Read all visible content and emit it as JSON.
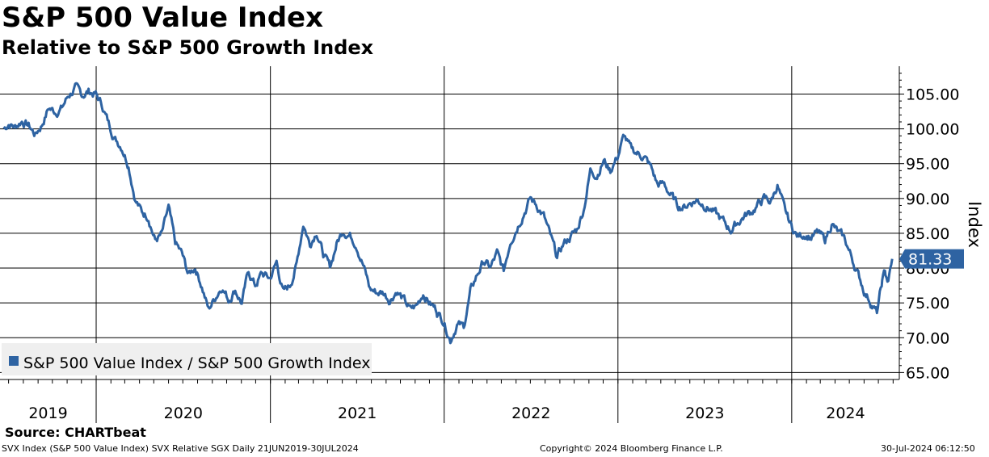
{
  "title": "S&P 500 Value Index",
  "subtitle": "Relative to S&P 500 Growth Index",
  "source": "Source: CHARTbeat",
  "footer": {
    "left": "SVX Index (S&P 500 Value Index) SVX Relative SGX  Daily 21JUN2019-30JUL2024",
    "center": "Copyright© 2024 Bloomberg Finance L.P.",
    "right": "30-Jul-2024 06:12:50"
  },
  "colors": {
    "series": "#2e63a2",
    "grid": "#000000",
    "legend_bg": "#efefef"
  },
  "chart_data": {
    "type": "line",
    "ylabel": "Index",
    "ylim": [
      64,
      109
    ],
    "yticks": [
      "65.00",
      "70.00",
      "75.00",
      "80.00",
      "85.00",
      "90.00",
      "95.00",
      "100.00",
      "105.00"
    ],
    "year_labels": [
      "2019",
      "2020",
      "2021",
      "2022",
      "2023",
      "2024"
    ],
    "last_value": "81.33",
    "legend": "S&P 500 Value Index / S&P 500 Growth Index",
    "series": [
      {
        "name": "S&P 500 Value Index / S&P 500 Growth Index",
        "points": [
          [
            "2019-06-21",
            100.0
          ],
          [
            "2019-07-01",
            100.8
          ],
          [
            "2019-07-15",
            100.3
          ],
          [
            "2019-07-29",
            101.2
          ],
          [
            "2019-08-12",
            100.5
          ],
          [
            "2019-08-26",
            99.2
          ],
          [
            "2019-09-09",
            100.6
          ],
          [
            "2019-09-23",
            103.0
          ],
          [
            "2019-10-07",
            102.5
          ],
          [
            "2019-10-21",
            103.0
          ],
          [
            "2019-11-04",
            104.8
          ],
          [
            "2019-11-18",
            105.8
          ],
          [
            "2019-12-02",
            104.8
          ],
          [
            "2019-12-16",
            105.4
          ],
          [
            "2019-12-31",
            105.0
          ],
          [
            "2020-01-13",
            103.5
          ],
          [
            "2020-01-27",
            100.8
          ],
          [
            "2020-02-10",
            98.6
          ],
          [
            "2020-02-24",
            97.5
          ],
          [
            "2020-03-09",
            95.0
          ],
          [
            "2020-03-23",
            90.0
          ],
          [
            "2020-04-06",
            88.0
          ],
          [
            "2020-04-20",
            87.5
          ],
          [
            "2020-05-04",
            84.0
          ],
          [
            "2020-05-18",
            84.8
          ],
          [
            "2020-06-01",
            88.5
          ],
          [
            "2020-06-15",
            83.5
          ],
          [
            "2020-06-29",
            82.0
          ],
          [
            "2020-07-13",
            79.0
          ],
          [
            "2020-07-27",
            80.2
          ],
          [
            "2020-08-10",
            77.5
          ],
          [
            "2020-08-24",
            74.0
          ],
          [
            "2020-09-07",
            75.8
          ],
          [
            "2020-09-21",
            77.5
          ],
          [
            "2020-10-05",
            75.5
          ],
          [
            "2020-10-19",
            77.0
          ],
          [
            "2020-11-02",
            75.0
          ],
          [
            "2020-11-16",
            79.5
          ],
          [
            "2020-11-30",
            77.5
          ],
          [
            "2020-12-14",
            79.2
          ],
          [
            "2020-12-31",
            78.5
          ],
          [
            "2021-01-14",
            80.8
          ],
          [
            "2021-01-28",
            76.5
          ],
          [
            "2021-02-11",
            77.5
          ],
          [
            "2021-02-25",
            80.5
          ],
          [
            "2021-03-11",
            86.5
          ],
          [
            "2021-03-25",
            83.5
          ],
          [
            "2021-04-08",
            85.5
          ],
          [
            "2021-04-22",
            82.0
          ],
          [
            "2021-05-06",
            80.0
          ],
          [
            "2021-05-20",
            83.5
          ],
          [
            "2021-06-03",
            85.5
          ],
          [
            "2021-06-17",
            84.8
          ],
          [
            "2021-07-01",
            83.5
          ],
          [
            "2021-07-15",
            80.5
          ],
          [
            "2021-07-29",
            77.0
          ],
          [
            "2021-08-12",
            76.5
          ],
          [
            "2021-08-26",
            76.5
          ],
          [
            "2021-09-09",
            75.5
          ],
          [
            "2021-09-23",
            76.8
          ],
          [
            "2021-10-07",
            75.5
          ],
          [
            "2021-10-21",
            74.0
          ],
          [
            "2021-11-04",
            74.5
          ],
          [
            "2021-11-18",
            76.5
          ],
          [
            "2021-12-02",
            75.0
          ],
          [
            "2021-12-16",
            74.0
          ],
          [
            "2021-12-31",
            72.5
          ],
          [
            "2022-01-14",
            69.8
          ],
          [
            "2022-01-28",
            72.0
          ],
          [
            "2022-02-11",
            71.5
          ],
          [
            "2022-02-25",
            76.5
          ],
          [
            "2022-03-11",
            79.0
          ],
          [
            "2022-03-25",
            81.0
          ],
          [
            "2022-04-08",
            80.0
          ],
          [
            "2022-04-22",
            82.0
          ],
          [
            "2022-05-06",
            79.5
          ],
          [
            "2022-05-20",
            84.0
          ],
          [
            "2022-06-03",
            86.0
          ],
          [
            "2022-06-17",
            88.0
          ],
          [
            "2022-07-01",
            90.0
          ],
          [
            "2022-07-15",
            89.0
          ],
          [
            "2022-07-29",
            87.5
          ],
          [
            "2022-08-12",
            84.5
          ],
          [
            "2022-08-26",
            81.5
          ],
          [
            "2022-09-09",
            83.5
          ],
          [
            "2022-09-23",
            84.5
          ],
          [
            "2022-10-07",
            85.5
          ],
          [
            "2022-10-21",
            88.5
          ],
          [
            "2022-11-04",
            94.0
          ],
          [
            "2022-11-18",
            93.5
          ],
          [
            "2022-12-02",
            95.5
          ],
          [
            "2022-12-16",
            94.0
          ],
          [
            "2022-12-31",
            96.0
          ],
          [
            "2023-01-14",
            99.0
          ],
          [
            "2023-01-28",
            97.0
          ],
          [
            "2023-02-11",
            96.5
          ],
          [
            "2023-02-25",
            96.0
          ],
          [
            "2023-03-11",
            94.5
          ],
          [
            "2023-03-25",
            92.0
          ],
          [
            "2023-04-08",
            92.0
          ],
          [
            "2023-04-22",
            90.5
          ],
          [
            "2023-05-06",
            89.0
          ],
          [
            "2023-05-20",
            88.8
          ],
          [
            "2023-06-03",
            89.5
          ],
          [
            "2023-06-17",
            89.8
          ],
          [
            "2023-07-01",
            89.2
          ],
          [
            "2023-07-15",
            88.5
          ],
          [
            "2023-07-29",
            87.5
          ],
          [
            "2023-08-12",
            86.5
          ],
          [
            "2023-08-26",
            85.5
          ],
          [
            "2023-09-09",
            86.5
          ],
          [
            "2023-09-23",
            87.5
          ],
          [
            "2023-10-07",
            88.0
          ],
          [
            "2023-10-21",
            89.0
          ],
          [
            "2023-11-04",
            90.0
          ],
          [
            "2023-11-18",
            89.5
          ],
          [
            "2023-12-02",
            92.0
          ],
          [
            "2023-12-16",
            88.5
          ],
          [
            "2023-12-31",
            86.0
          ],
          [
            "2024-01-14",
            84.5
          ],
          [
            "2024-01-28",
            85.0
          ],
          [
            "2024-02-11",
            84.5
          ],
          [
            "2024-02-25",
            85.0
          ],
          [
            "2024-03-11",
            84.0
          ],
          [
            "2024-03-25",
            86.5
          ],
          [
            "2024-04-08",
            85.0
          ],
          [
            "2024-04-22",
            84.0
          ],
          [
            "2024-05-06",
            81.5
          ],
          [
            "2024-05-20",
            79.0
          ],
          [
            "2024-06-03",
            76.5
          ],
          [
            "2024-06-17",
            75.0
          ],
          [
            "2024-06-28",
            73.5
          ],
          [
            "2024-07-08",
            77.5
          ],
          [
            "2024-07-15",
            79.5
          ],
          [
            "2024-07-22",
            78.0
          ],
          [
            "2024-07-30",
            81.33
          ]
        ]
      }
    ]
  }
}
